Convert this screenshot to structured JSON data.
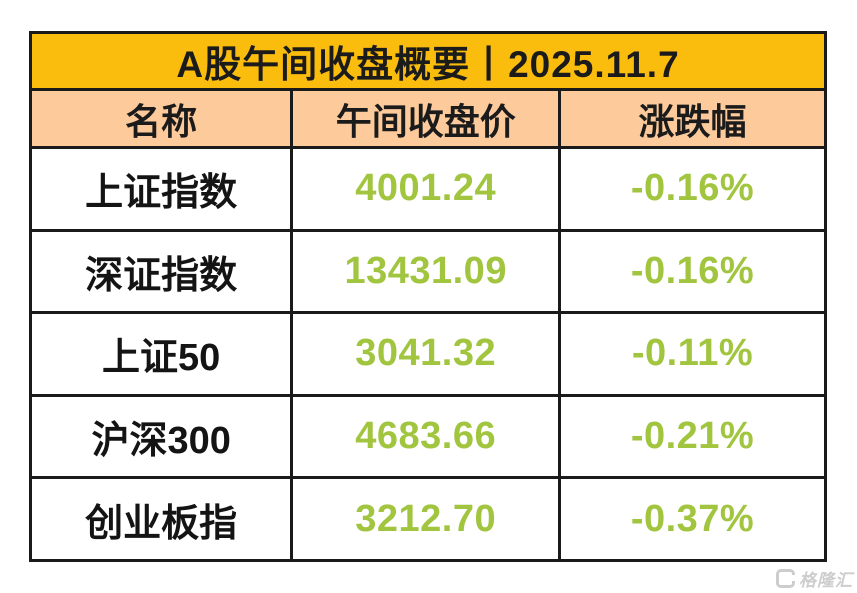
{
  "title": "A股午间收盘概要丨2025.11.7",
  "watermark": "格隆汇",
  "colors": {
    "title_bg": "#fbbd0d",
    "header_bg": "#fdcb9b",
    "grid_line": "#1a1a1a",
    "value_green": "#a2c540",
    "text_black": "#141414",
    "watermark_gray": "#cdcdcd"
  },
  "table": {
    "columns": {
      "name": "名称",
      "price": "午间收盘价",
      "change": "涨跌幅"
    },
    "rows": [
      {
        "name": "上证指数",
        "price": "4001.24",
        "change": "-0.16%"
      },
      {
        "name": "深证指数",
        "price": "13431.09",
        "change": "-0.16%"
      },
      {
        "name": "上证50",
        "price": "3041.32",
        "change": "-0.11%"
      },
      {
        "name": "沪深300",
        "price": "4683.66",
        "change": "-0.21%"
      },
      {
        "name": "创业板指",
        "price": "3212.70",
        "change": "-0.37%"
      }
    ]
  },
  "chart_data": {
    "type": "table",
    "title": "A股午间收盘概要丨2025.11.7",
    "categories": [
      "上证指数",
      "深证指数",
      "上证50",
      "沪深300",
      "创业板指"
    ],
    "series": [
      {
        "name": "午间收盘价",
        "values": [
          4001.24,
          13431.09,
          3041.32,
          4683.66,
          3212.7
        ]
      },
      {
        "name": "涨跌幅(%)",
        "values": [
          -0.16,
          -0.16,
          -0.11,
          -0.21,
          -0.37
        ]
      }
    ]
  }
}
